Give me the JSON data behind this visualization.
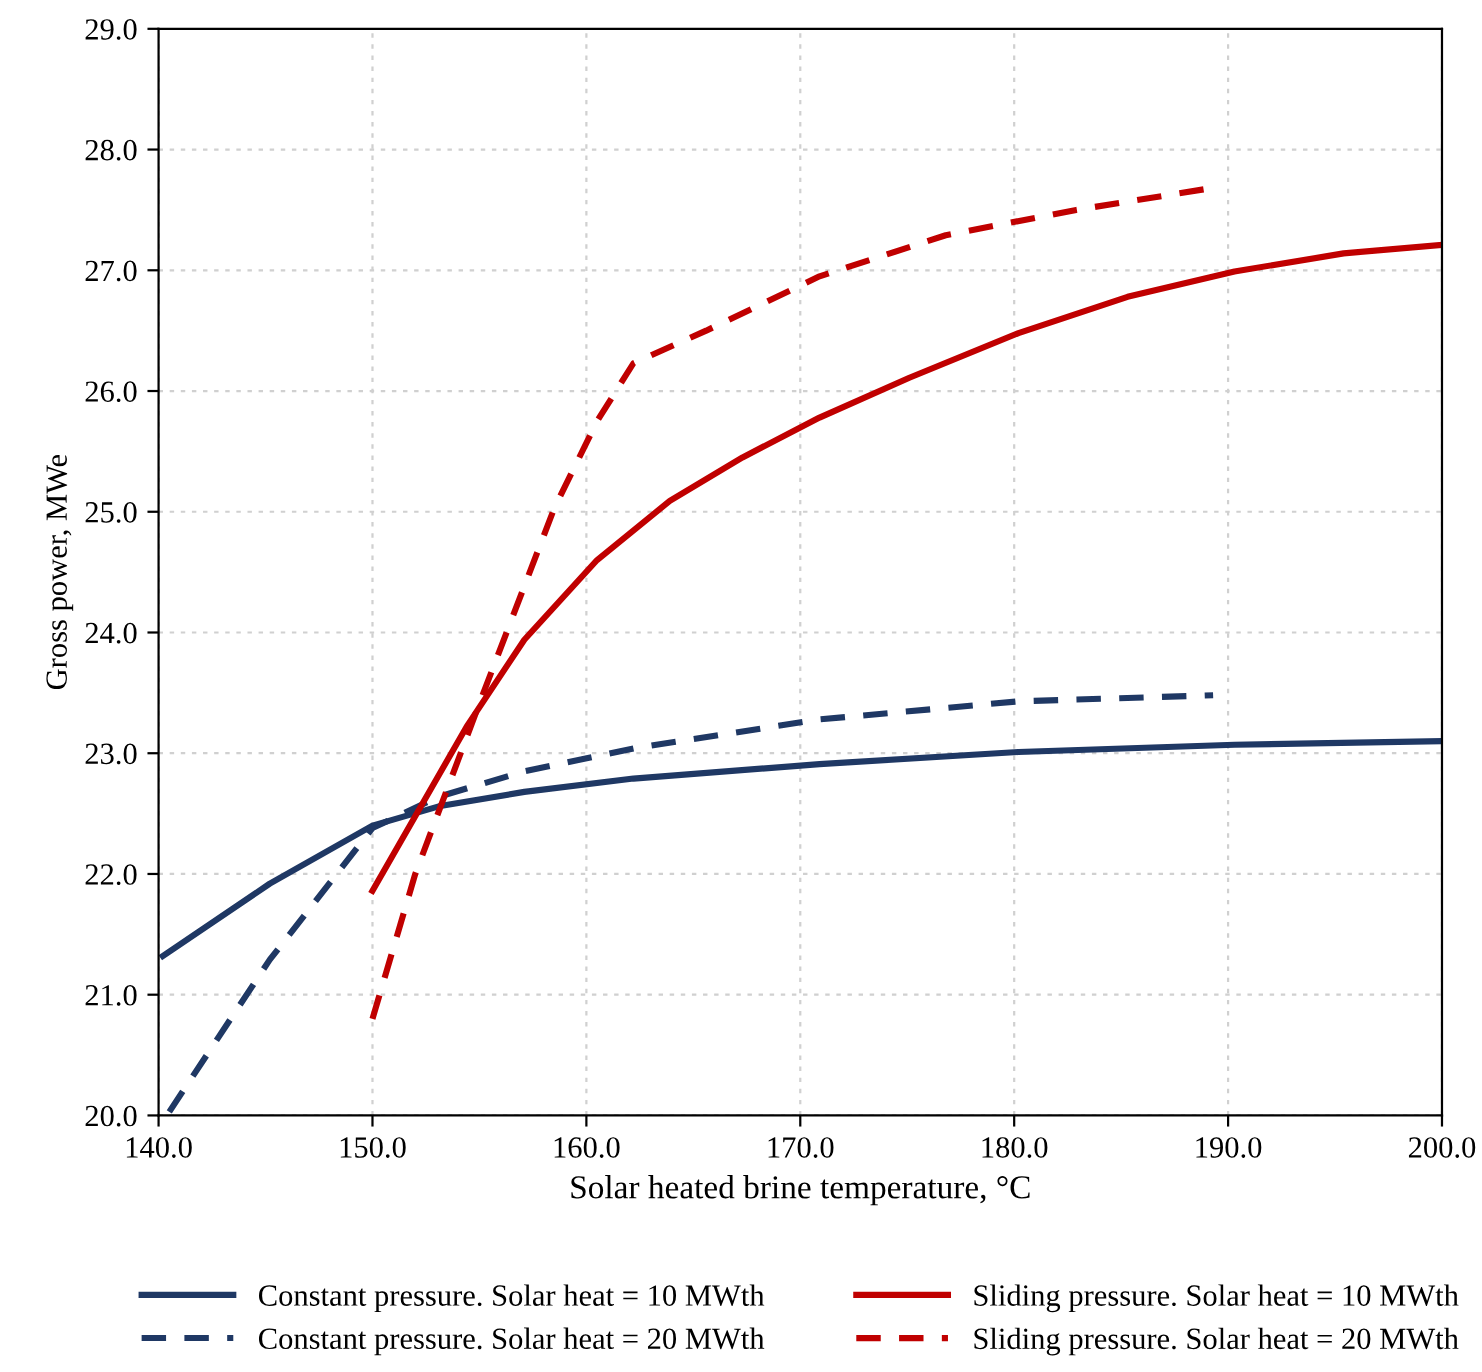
{
  "chart_data": {
    "type": "line",
    "xlabel": "Solar heated brine temperature, °C",
    "ylabel": "Gross power, MWe",
    "xlim": [
      140,
      200
    ],
    "xticks": [
      {
        "value": 140,
        "label": "140.0"
      },
      {
        "value": 150,
        "label": "150.0"
      },
      {
        "value": 160,
        "label": "160.0"
      },
      {
        "value": 170,
        "label": "170.0"
      },
      {
        "value": 180,
        "label": "180.0"
      },
      {
        "value": 190,
        "label": "190.0"
      },
      {
        "value": 200,
        "label": "200.0"
      }
    ],
    "ylim": [
      20,
      29
    ],
    "yticks": [
      {
        "value": 20,
        "label": "20.0"
      },
      {
        "value": 21,
        "label": "21.0"
      },
      {
        "value": 22,
        "label": "22.0"
      },
      {
        "value": 23,
        "label": "23.0"
      },
      {
        "value": 24,
        "label": "24.0"
      },
      {
        "value": 25,
        "label": "25.0"
      },
      {
        "value": 26,
        "label": "26.0"
      },
      {
        "value": 27,
        "label": "27.0"
      },
      {
        "value": 28,
        "label": "28.0"
      },
      {
        "value": 29,
        "label": "29.0"
      }
    ],
    "grid": true,
    "legend": "bottom",
    "series": [
      {
        "name": "Constant pressure. Solar heat = 10 MWth",
        "color": "#1f3864",
        "line_style": "solid",
        "x": [
          140.2,
          145.2,
          150,
          153.1,
          157.1,
          162.2,
          170.9,
          180.2,
          190.3,
          200
        ],
        "values": [
          21.32,
          21.92,
          22.4,
          22.56,
          22.68,
          22.79,
          22.91,
          23.01,
          23.07,
          23.1
        ]
      },
      {
        "name": "Constant pressure. Solar heat = 20 MWth",
        "color": "#1f3864",
        "line_style": "dashed",
        "x": [
          140.5,
          145.2,
          150,
          153.1,
          157.1,
          162.2,
          170.9,
          180.2,
          189.3
        ],
        "values": [
          20.03,
          21.29,
          22.38,
          22.64,
          22.85,
          23.04,
          23.28,
          23.43,
          23.48
        ]
      },
      {
        "name": "Sliding pressure. Solar heat = 10 MWth",
        "color": "#c00000",
        "line_style": "solid",
        "x": [
          150,
          154.4,
          157.1,
          160.5,
          163.9,
          167.3,
          170.9,
          175.1,
          180.2,
          185.3,
          190.3,
          195.4,
          200
        ],
        "values": [
          21.86,
          23.22,
          23.94,
          24.6,
          25.09,
          25.45,
          25.78,
          26.11,
          26.48,
          26.78,
          26.99,
          27.14,
          27.21
        ]
      },
      {
        "name": "Sliding pressure. Solar heat = 20 MWth",
        "color": "#c00000",
        "line_style": "dashed",
        "x": [
          150,
          152,
          155.1,
          158.5,
          160.5,
          162.2,
          165.6,
          170.9,
          176.8,
          182.9,
          189.2
        ],
        "values": [
          20.8,
          22.0,
          23.46,
          25.03,
          25.75,
          26.23,
          26.5,
          26.95,
          27.29,
          27.5,
          27.68
        ]
      }
    ]
  }
}
